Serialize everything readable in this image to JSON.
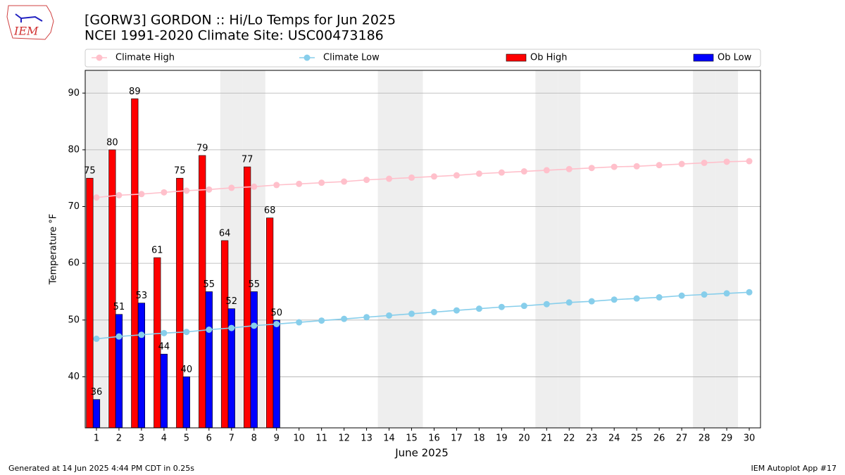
{
  "logo_text": "IEM",
  "chart_data": {
    "type": "bar",
    "title": "[GORW3] GORDON :: Hi/Lo Temps for Jun 2025",
    "subtitle": "NCEI 1991-2020 Climate Site: USC00473186",
    "xlabel": "June 2025",
    "ylabel": "Temperature °F",
    "x": [
      1,
      2,
      3,
      4,
      5,
      6,
      7,
      8,
      9,
      10,
      11,
      12,
      13,
      14,
      15,
      16,
      17,
      18,
      19,
      20,
      21,
      22,
      23,
      24,
      25,
      26,
      27,
      28,
      29,
      30
    ],
    "xlim": [
      0.5,
      30.5
    ],
    "xticks": [
      1,
      2,
      3,
      4,
      5,
      6,
      7,
      8,
      9,
      10,
      11,
      12,
      13,
      14,
      15,
      16,
      17,
      18,
      19,
      20,
      21,
      22,
      23,
      24,
      25,
      26,
      27,
      28,
      29,
      30
    ],
    "ylim": [
      31,
      94
    ],
    "yticks": [
      40,
      50,
      60,
      70,
      80,
      90
    ],
    "grid": true,
    "highlight_days": [
      1,
      7,
      8,
      14,
      15,
      21,
      22,
      28,
      29
    ],
    "highlight_color": "#eeeeee",
    "series": [
      {
        "name": "Climate High",
        "type": "line",
        "color": "#ffc0cb",
        "values": [
          71.6,
          72.0,
          72.2,
          72.5,
          72.8,
          73.0,
          73.3,
          73.5,
          73.8,
          74.0,
          74.2,
          74.4,
          74.7,
          74.9,
          75.1,
          75.3,
          75.5,
          75.8,
          76.0,
          76.2,
          76.4,
          76.6,
          76.8,
          77.0,
          77.1,
          77.3,
          77.5,
          77.7,
          77.9,
          78.0
        ]
      },
      {
        "name": "Climate Low",
        "type": "line",
        "color": "#87ceeb",
        "values": [
          46.7,
          47.1,
          47.4,
          47.7,
          47.9,
          48.3,
          48.6,
          49.0,
          49.3,
          49.6,
          49.9,
          50.2,
          50.5,
          50.8,
          51.1,
          51.4,
          51.7,
          52.0,
          52.3,
          52.5,
          52.8,
          53.1,
          53.3,
          53.6,
          53.8,
          54.0,
          54.3,
          54.5,
          54.7,
          54.9
        ]
      },
      {
        "name": "Ob High",
        "type": "bar",
        "color": "#ff0000",
        "values": [
          75,
          80,
          89,
          61,
          75,
          79,
          64,
          77,
          68,
          null,
          null,
          null,
          null,
          null,
          null,
          null,
          null,
          null,
          null,
          null,
          null,
          null,
          null,
          null,
          null,
          null,
          null,
          null,
          null,
          null
        ]
      },
      {
        "name": "Ob Low",
        "type": "bar",
        "color": "#0000ff",
        "values": [
          36,
          51,
          53,
          44,
          40,
          55,
          52,
          55,
          50,
          null,
          null,
          null,
          null,
          null,
          null,
          null,
          null,
          null,
          null,
          null,
          null,
          null,
          null,
          null,
          null,
          null,
          null,
          null,
          null,
          null
        ]
      }
    ],
    "footer_left": "Generated at 14 Jun 2025 4:44 PM CDT in 0.25s",
    "footer_right": "IEM Autoplot App #17"
  }
}
